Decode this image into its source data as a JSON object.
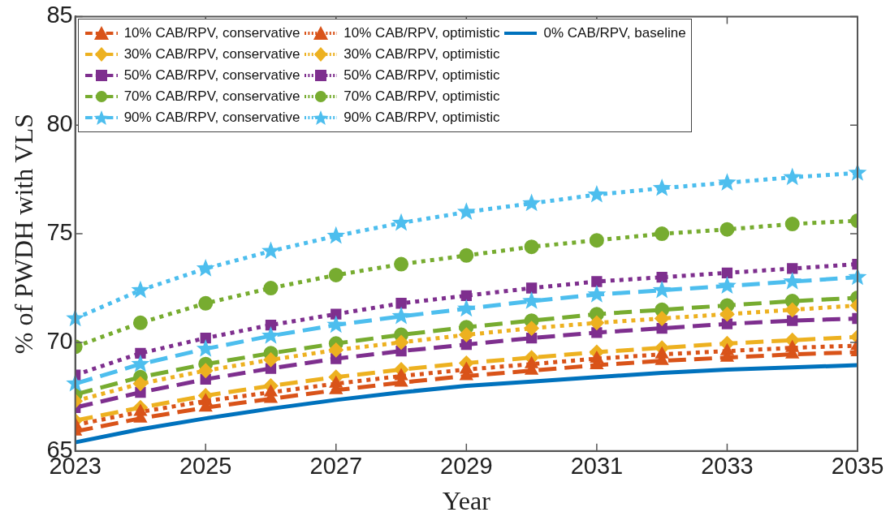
{
  "chart_data": {
    "type": "line",
    "xlabel": "Year",
    "ylabel": "% of PWDH with VLS",
    "x": [
      2023,
      2024,
      2025,
      2026,
      2027,
      2028,
      2029,
      2030,
      2031,
      2032,
      2033,
      2034,
      2035
    ],
    "xlim": [
      2023,
      2035
    ],
    "xticks": [
      2023,
      2025,
      2027,
      2029,
      2031,
      2033,
      2035
    ],
    "ylim": [
      65,
      85
    ],
    "yticks": [
      65,
      70,
      75,
      80,
      85
    ],
    "grid": false,
    "legend": "top left",
    "series": [
      {
        "name": "10% CAB/RPV, conservative",
        "color": "#d95319",
        "marker": "triangle",
        "line_style": "dashed",
        "values": [
          65.9,
          66.5,
          67.0,
          67.4,
          67.8,
          68.15,
          68.45,
          68.7,
          68.95,
          69.15,
          69.3,
          69.45,
          69.55
        ]
      },
      {
        "name": "10% CAB/RPV, optimistic",
        "color": "#d95319",
        "marker": "triangle",
        "line_style": "dotted",
        "values": [
          66.2,
          66.8,
          67.3,
          67.7,
          68.1,
          68.45,
          68.75,
          69.0,
          69.25,
          69.45,
          69.6,
          69.75,
          69.85
        ]
      },
      {
        "name": "0% CAB/RPV, baseline",
        "color": "#0072bd",
        "marker": "none",
        "line_style": "solid",
        "values": [
          65.4,
          66.0,
          66.5,
          66.95,
          67.35,
          67.7,
          68.0,
          68.2,
          68.4,
          68.6,
          68.75,
          68.85,
          68.95
        ]
      },
      {
        "name": "30% CAB/RPV, conservative",
        "color": "#edb120",
        "marker": "diamond",
        "line_style": "dashed",
        "values": [
          66.4,
          67.0,
          67.55,
          68.0,
          68.4,
          68.75,
          69.05,
          69.3,
          69.55,
          69.75,
          69.95,
          70.1,
          70.25
        ]
      },
      {
        "name": "30% CAB/RPV, optimistic",
        "color": "#edb120",
        "marker": "diamond",
        "line_style": "dotted",
        "values": [
          67.3,
          68.1,
          68.7,
          69.2,
          69.65,
          70.0,
          70.35,
          70.65,
          70.9,
          71.1,
          71.3,
          71.5,
          71.7
        ]
      },
      {
        "name": "50% CAB/RPV, conservative",
        "color": "#7e2f8e",
        "marker": "square",
        "line_style": "dashed",
        "values": [
          67.0,
          67.7,
          68.3,
          68.8,
          69.25,
          69.6,
          69.9,
          70.2,
          70.45,
          70.65,
          70.85,
          71.0,
          71.1
        ]
      },
      {
        "name": "50% CAB/RPV, optimistic",
        "color": "#7e2f8e",
        "marker": "square",
        "line_style": "dotted",
        "values": [
          68.5,
          69.5,
          70.2,
          70.8,
          71.3,
          71.8,
          72.15,
          72.5,
          72.8,
          73.0,
          73.2,
          73.4,
          73.6
        ]
      },
      {
        "name": "70% CAB/RPV, conservative",
        "color": "#77ac30",
        "marker": "circle",
        "line_style": "dashed",
        "values": [
          67.6,
          68.4,
          69.0,
          69.5,
          69.95,
          70.35,
          70.7,
          71.0,
          71.3,
          71.5,
          71.7,
          71.9,
          72.05
        ]
      },
      {
        "name": "70% CAB/RPV, optimistic",
        "color": "#77ac30",
        "marker": "circle",
        "line_style": "dotted",
        "values": [
          69.8,
          70.9,
          71.8,
          72.5,
          73.1,
          73.6,
          74.0,
          74.4,
          74.7,
          75.0,
          75.2,
          75.45,
          75.6
        ]
      },
      {
        "name": "90% CAB/RPV, conservative",
        "color": "#4dbeee",
        "marker": "star",
        "line_style": "dashed",
        "values": [
          68.1,
          69.0,
          69.7,
          70.3,
          70.8,
          71.2,
          71.55,
          71.9,
          72.2,
          72.4,
          72.6,
          72.8,
          73.0
        ]
      },
      {
        "name": "90% CAB/RPV, optimistic",
        "color": "#4dbeee",
        "marker": "star",
        "line_style": "dotted",
        "values": [
          71.1,
          72.4,
          73.4,
          74.2,
          74.9,
          75.5,
          76.0,
          76.4,
          76.8,
          77.1,
          77.35,
          77.6,
          77.8
        ]
      }
    ]
  }
}
